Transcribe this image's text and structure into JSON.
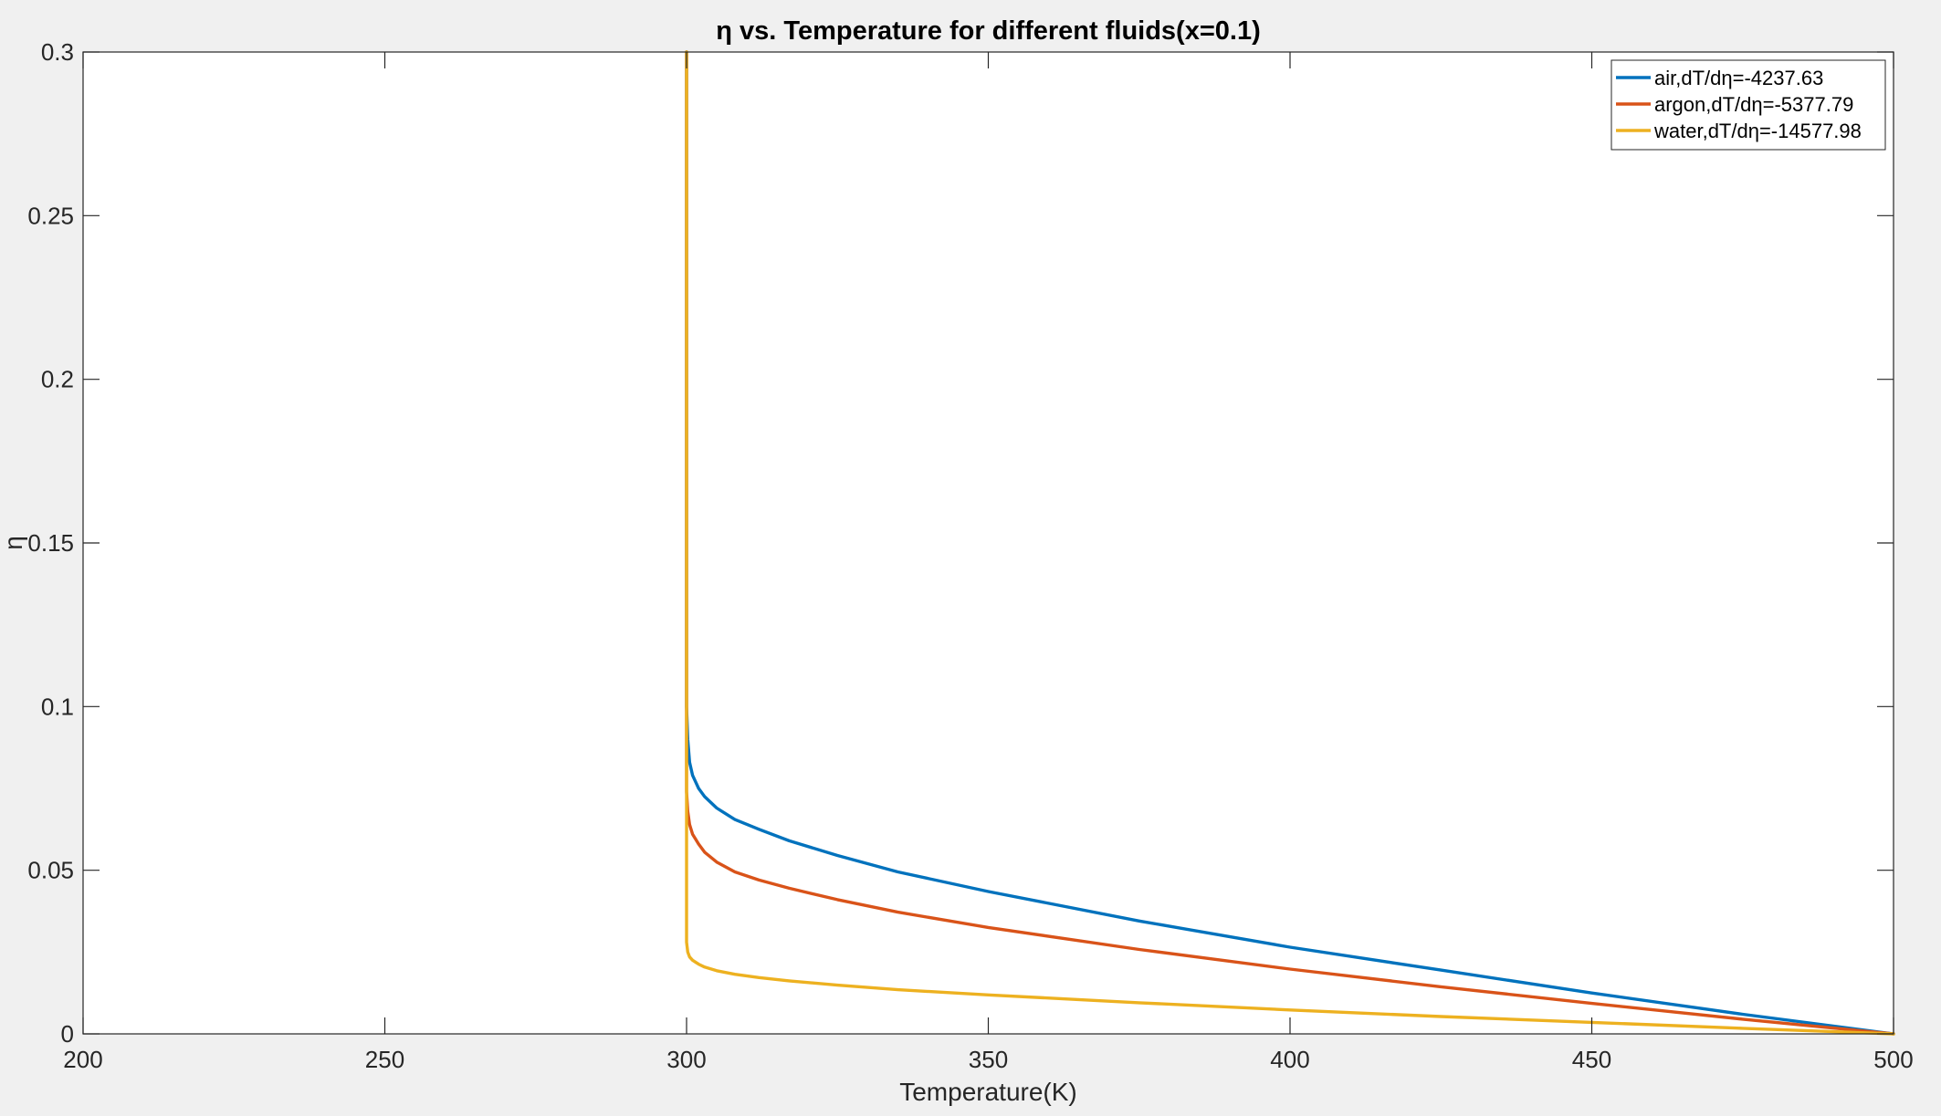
{
  "figure": {
    "background": "#f0f0f0",
    "axes_background": "#ffffff",
    "axes_color": "#262626"
  },
  "chart_data": {
    "type": "line",
    "title": "η vs. Temperature for different fluids(x=0.1)",
    "xlabel": "Temperature(K)",
    "ylabel": "η",
    "xlim": [
      200,
      500
    ],
    "ylim": [
      0,
      0.3
    ],
    "xticks": [
      200,
      250,
      300,
      350,
      400,
      450,
      500
    ],
    "xtick_labels": [
      "200",
      "250",
      "300",
      "350",
      "400",
      "450",
      "500"
    ],
    "yticks": [
      0,
      0.05,
      0.1,
      0.15,
      0.2,
      0.25,
      0.3
    ],
    "ytick_labels": [
      "0",
      "0.05",
      "0.1",
      "0.15",
      "0.2",
      "0.25",
      "0.3"
    ],
    "grid": false,
    "legend_position": "top-right",
    "series": [
      {
        "name": "air,dT/dη=-4237.63",
        "color": "#0072BD",
        "x": [
          300,
          300,
          300.2,
          300.5,
          301,
          302,
          303,
          305,
          308,
          312,
          317,
          325,
          335,
          350,
          375,
          400,
          425,
          450,
          475,
          500
        ],
        "y": [
          0.3,
          0.1,
          0.09,
          0.083,
          0.079,
          0.075,
          0.0725,
          0.069,
          0.0655,
          0.0625,
          0.059,
          0.0545,
          0.0495,
          0.0435,
          0.0345,
          0.0265,
          0.0195,
          0.0125,
          0.006,
          0
        ]
      },
      {
        "name": "argon,dT/dη=-5377.79",
        "color": "#D95319",
        "x": [
          300,
          300,
          300.2,
          300.5,
          301,
          302,
          303,
          305,
          308,
          312,
          317,
          325,
          335,
          350,
          375,
          400,
          425,
          450,
          475,
          500
        ],
        "y": [
          0.3,
          0.074,
          0.068,
          0.064,
          0.061,
          0.058,
          0.0555,
          0.0525,
          0.0495,
          0.047,
          0.0445,
          0.041,
          0.0372,
          0.0325,
          0.0258,
          0.0198,
          0.0144,
          0.0093,
          0.0045,
          0
        ]
      },
      {
        "name": "water,dT/dη=-14577.98",
        "color": "#EDB120",
        "x": [
          300,
          300,
          300.2,
          300.5,
          301,
          302,
          303,
          305,
          308,
          312,
          317,
          325,
          335,
          350,
          375,
          400,
          425,
          450,
          475,
          500
        ],
        "y": [
          0.3,
          0.028,
          0.025,
          0.0235,
          0.0225,
          0.0213,
          0.0204,
          0.0193,
          0.0182,
          0.0172,
          0.0162,
          0.0149,
          0.0135,
          0.0119,
          0.0095,
          0.0073,
          0.0053,
          0.0035,
          0.0017,
          0
        ]
      }
    ]
  }
}
